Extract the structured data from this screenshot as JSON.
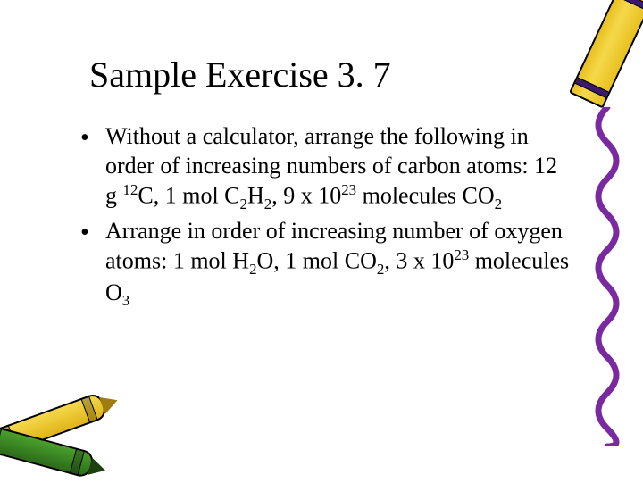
{
  "title": "Sample Exercise 3. 7",
  "bullets": [
    {
      "parts": [
        {
          "t": "Without a calculator, arrange the following in order of increasing numbers of carbon atoms: 12 g "
        },
        {
          "t": "12",
          "sup": true
        },
        {
          "t": "C, 1 mol C"
        },
        {
          "t": "2",
          "sub": true
        },
        {
          "t": "H"
        },
        {
          "t": "2",
          "sub": true
        },
        {
          "t": ", 9 x 10"
        },
        {
          "t": "23",
          "sup": true
        },
        {
          "t": " molecules CO"
        },
        {
          "t": "2",
          "sub": true
        }
      ]
    },
    {
      "parts": [
        {
          "t": "Arrange in order of increasing number of oxygen atoms: 1 mol H"
        },
        {
          "t": "2",
          "sub": true
        },
        {
          "t": "O, 1 mol CO"
        },
        {
          "t": "2",
          "sub": true
        },
        {
          "t": ", 3 x 10"
        },
        {
          "t": "23",
          "sup": true
        },
        {
          "t": " molecules O"
        },
        {
          "t": "3",
          "sub": true
        }
      ]
    }
  ],
  "decor": {
    "crayon_top_right_color": "#f5d84a",
    "crayon_top_right_accent": "#3a1a6a",
    "squiggle_color": "#7a2aa0",
    "crayon_bl_yellow": "#f5d84a",
    "crayon_bl_green": "#4aa02c"
  }
}
